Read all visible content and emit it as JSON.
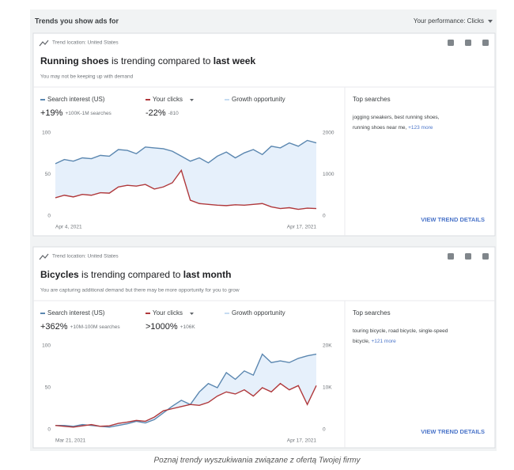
{
  "header": {
    "title": "Trends you show ads for",
    "performance": "Your performance: Clicks"
  },
  "cards": [
    {
      "location": "Trend location: United States",
      "headline": {
        "subject": "Running shoes",
        "middle": " is trending compared to ",
        "period": "last week"
      },
      "subtitle": "You may not be keeping up with demand",
      "growth_label": "Growth opportunity",
      "stats": [
        {
          "value": "+19%",
          "note": "+100K-1M searches"
        },
        {
          "value": "-22%",
          "note": "-810"
        }
      ],
      "chart_data": {
        "type": "line",
        "x_labels": [
          "Apr 4, 2021",
          "Apr 17, 2021"
        ],
        "ylim": [
          0,
          100
        ],
        "yticks": [
          0,
          50,
          100
        ],
        "y2lim": [
          0,
          2000
        ],
        "y2ticks": [
          0,
          1000,
          2000
        ],
        "series": [
          {
            "name": "Search interest (US)",
            "color": "#5b87b0",
            "values": [
              63,
              68,
              66,
              70,
              69,
              73,
              72,
              80,
              79,
              75,
              83,
              82,
              81,
              78,
              72,
              66,
              70,
              64,
              72,
              77,
              70,
              76,
              80,
              74,
              84,
              82,
              88,
              84,
              91,
              88
            ]
          },
          {
            "name": "Your clicks",
            "color": "#b0393c",
            "axis": "y2",
            "values": [
              440,
              500,
              460,
              520,
              500,
              560,
              550,
              700,
              740,
              720,
              760,
              650,
              700,
              800,
              1100,
              380,
              300,
              280,
              260,
              250,
              270,
              260,
              280,
              300,
              220,
              180,
              200,
              160,
              190,
              180
            ]
          }
        ]
      },
      "top_searches_title": "Top searches",
      "top_searches": [
        "jogging sneakers, best running shoes,",
        "running shoes near me, "
      ],
      "more": "+123 more",
      "link": "VIEW TREND DETAILS"
    },
    {
      "location": "Trend location: United States",
      "headline": {
        "subject": "Bicycles",
        "middle": " is trending compared to ",
        "period": "last month"
      },
      "subtitle": "You are capturing additional demand but there may be more opportunity for you to grow",
      "growth_label": "Growth opportunity",
      "stats": [
        {
          "value": "+362%",
          "note": "+10M-100M searches"
        },
        {
          "value": ">1000%",
          "note": "+106K"
        }
      ],
      "chart_data": {
        "type": "line",
        "x_labels": [
          "Mar 21, 2021",
          "Apr 17, 2021"
        ],
        "ylim": [
          0,
          100
        ],
        "yticks": [
          0,
          50,
          100
        ],
        "y2lim": [
          0,
          20000
        ],
        "y2ticks": [
          0,
          {
            "value": 10000,
            "label": "10K"
          },
          {
            "value": 20000,
            "label": "20K"
          }
        ],
        "series": [
          {
            "name": "Search interest (US)",
            "color": "#5b87b0",
            "values": [
              5,
              5,
              4,
              6,
              5,
              4,
              3,
              5,
              7,
              10,
              8,
              12,
              20,
              28,
              35,
              30,
              45,
              55,
              50,
              68,
              60,
              70,
              65,
              90,
              80,
              82,
              80,
              85,
              88,
              90
            ]
          },
          {
            "name": "Your clicks",
            "color": "#b0393c",
            "axis": "y2",
            "values": [
              1000,
              800,
              600,
              900,
              1200,
              800,
              900,
              1500,
              1800,
              2200,
              2000,
              3000,
              4500,
              5000,
              5500,
              6000,
              5800,
              6500,
              8000,
              9000,
              8500,
              9500,
              8000,
              10000,
              9000,
              11000,
              9500,
              10500,
              6000,
              10500
            ]
          }
        ]
      },
      "top_searches_title": "Top searches",
      "top_searches": [
        "touring bicycle, road bicycle, single-speed",
        "bicycle, "
      ],
      "more": "+121 more",
      "link": "VIEW TREND DETAILS"
    }
  ],
  "caption": "Poznaj trendy wyszukiwania związane z ofertą Twojej firmy"
}
